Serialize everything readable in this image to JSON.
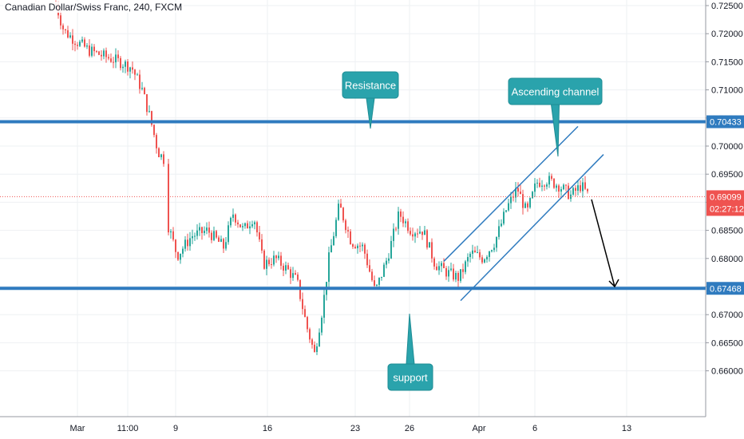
{
  "header": {
    "title": "Canadian Dollar/Swiss Franc, 240, FXCM"
  },
  "chart_data": {
    "type": "candlestick",
    "instrument": "Canadian Dollar/Swiss Franc",
    "timeframe": "240",
    "source": "FXCM",
    "ylim": [
      0.6555,
      0.7265
    ],
    "y_ticks": [
      "0.72500",
      "0.72000",
      "0.71500",
      "0.71000",
      "0.70500",
      "0.70000",
      "0.69500",
      "0.69000",
      "0.68500",
      "0.68000",
      "0.67500",
      "0.67000",
      "0.66500",
      "0.66000"
    ],
    "x_ticks": [
      "Mar",
      "11:00",
      "9",
      "16",
      "23",
      "26",
      "Apr",
      "6",
      "13"
    ],
    "grid": true,
    "up_color": "#26a69a",
    "down_color": "#ef5350",
    "current_price": {
      "value": 0.69099,
      "label": "0.69099",
      "countdown": "02:27:12",
      "color": "#ef5350"
    },
    "levels": [
      {
        "name": "Resistance",
        "value": 0.70433,
        "label": "0.70433",
        "color": "#2f7bbf"
      },
      {
        "name": "support",
        "value": 0.67468,
        "label": "0.67468",
        "color": "#2f7bbf"
      }
    ],
    "annotations": [
      {
        "text": "Resistance"
      },
      {
        "text": "Ascending channel"
      },
      {
        "text": "support"
      }
    ],
    "callout_color": "#2aa3ac"
  }
}
